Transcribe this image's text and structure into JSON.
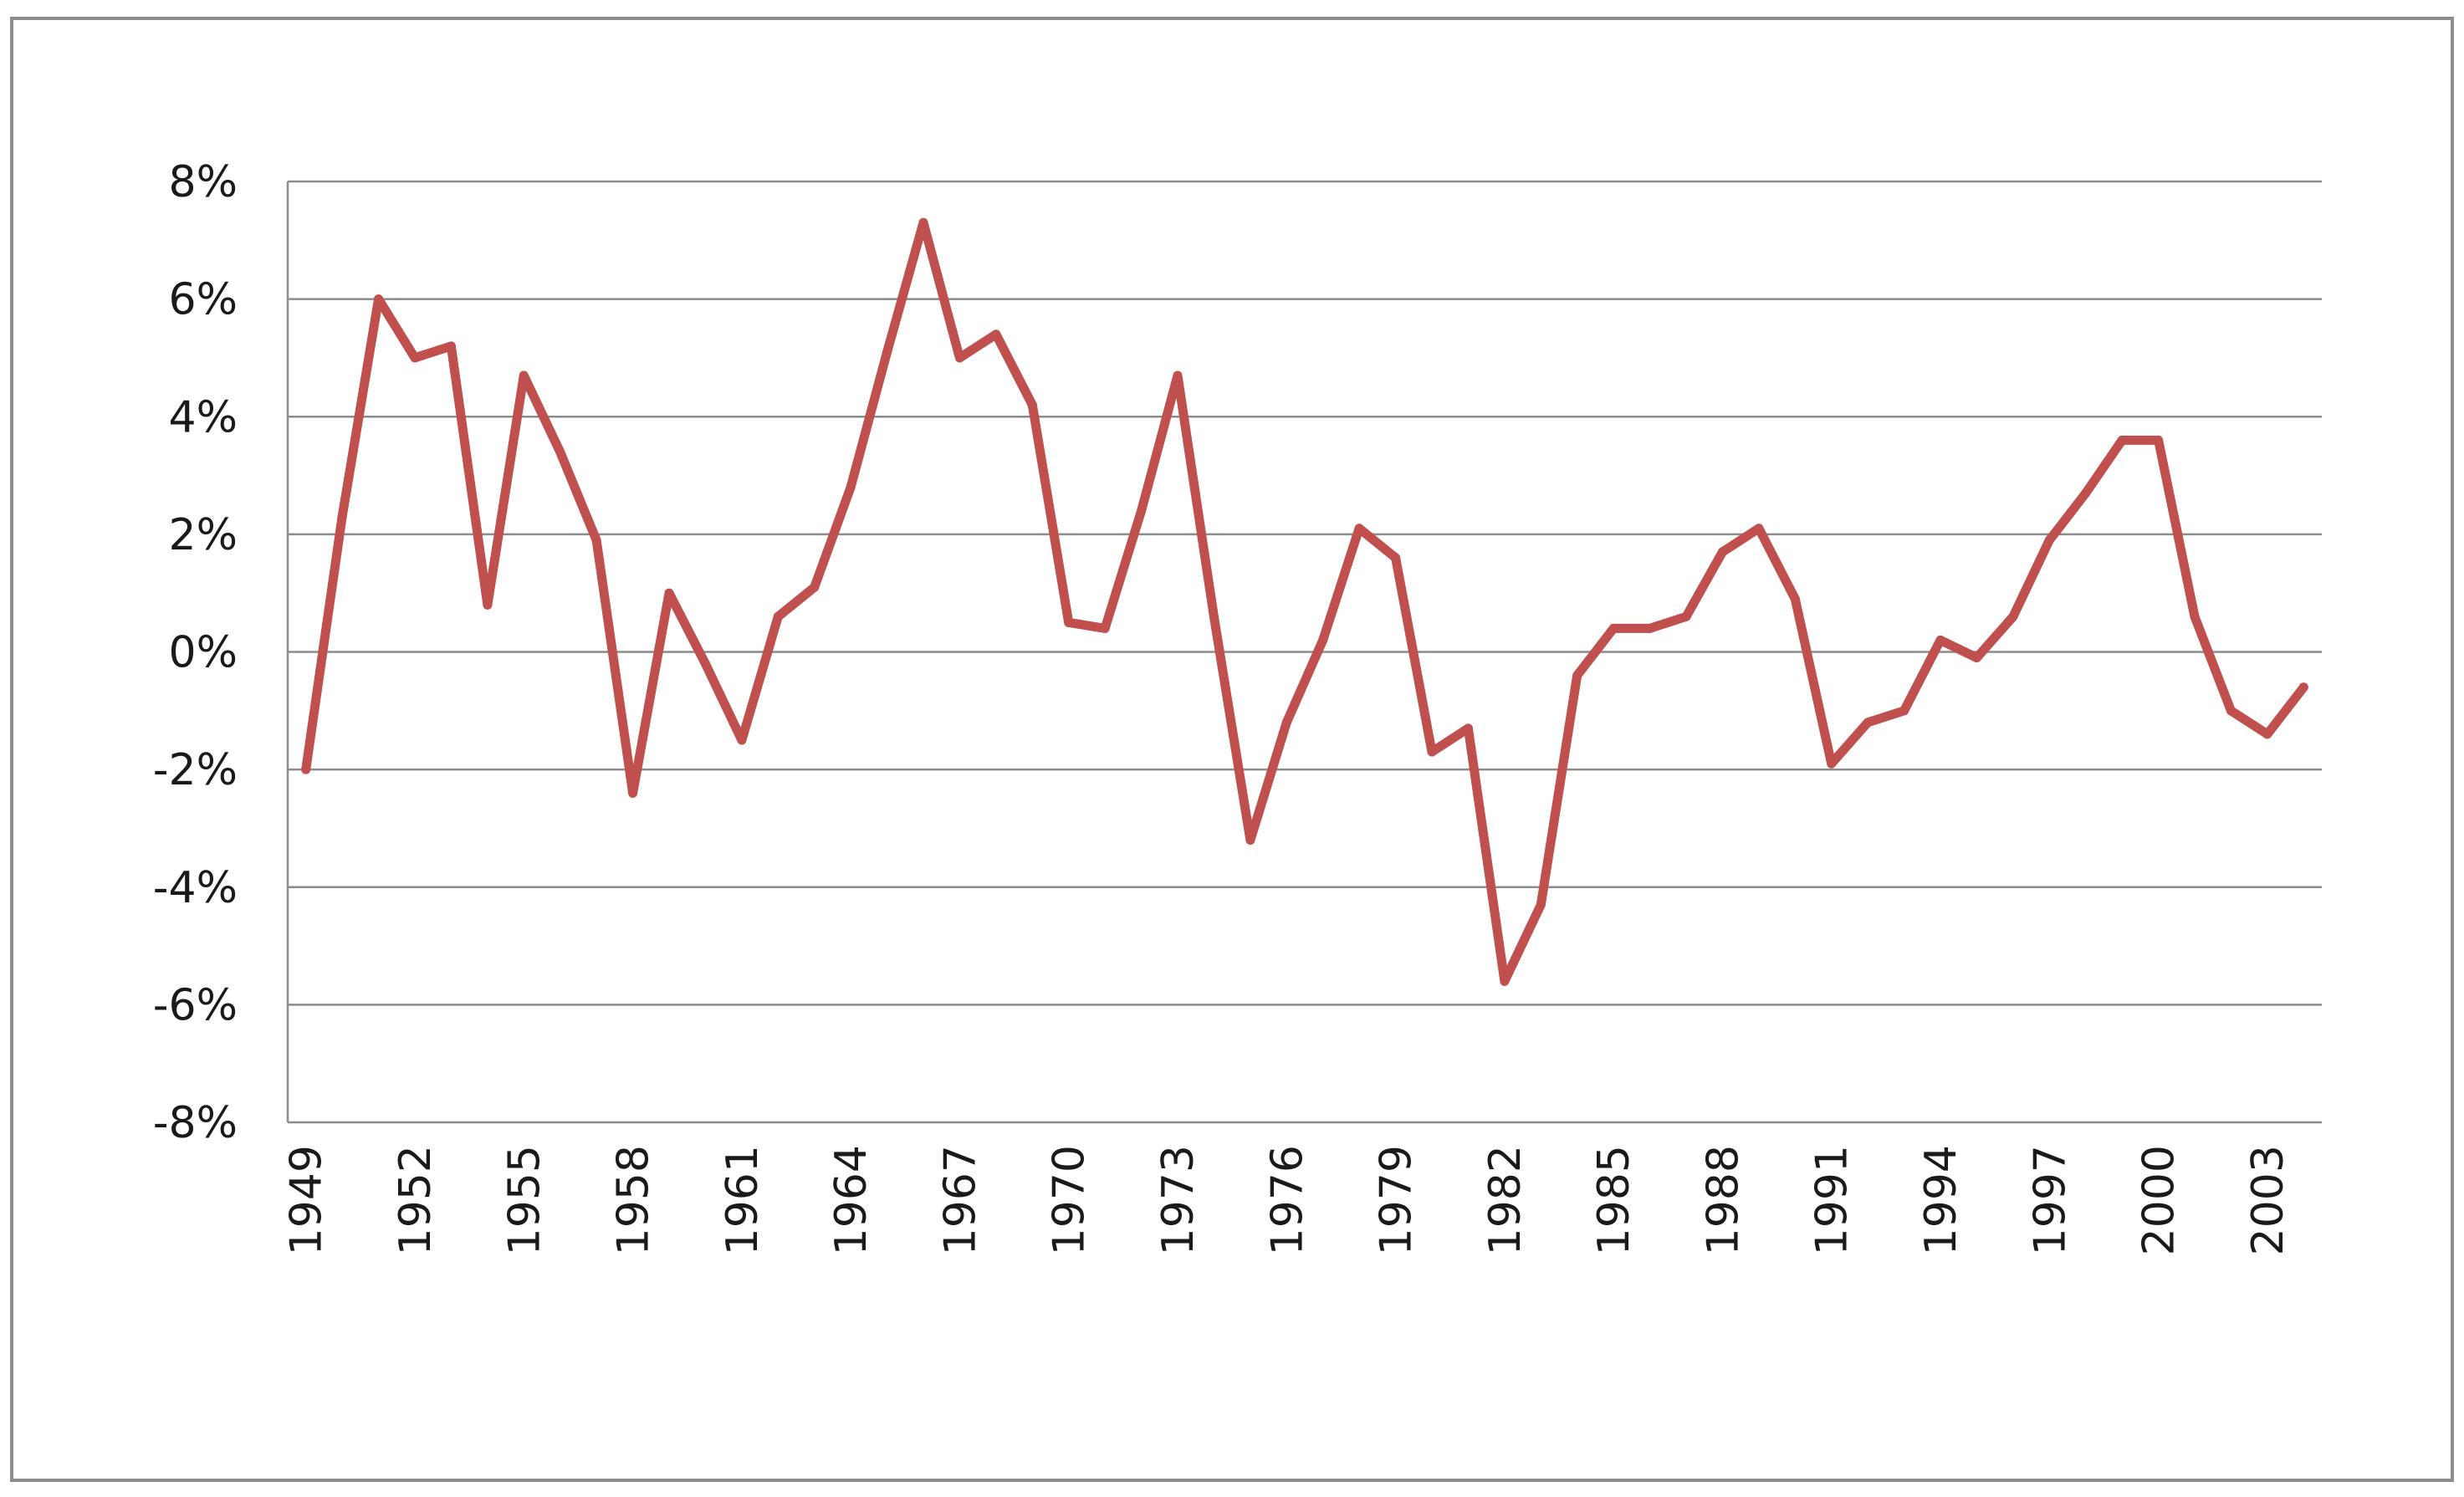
{
  "colors": {
    "line": "#c0504d",
    "grid": "#8c8c8c",
    "axis": "#8c8c8c",
    "frame": "#8c8c8c"
  },
  "chart_data": {
    "type": "line",
    "title": "",
    "xlabel": "",
    "ylabel": "",
    "ylim": [
      -8,
      8
    ],
    "y_ticks": [
      8,
      6,
      4,
      2,
      0,
      -2,
      -4,
      -6,
      -8
    ],
    "y_tick_labels": [
      "8%",
      "6%",
      "4%",
      "2%",
      "0%",
      "-2%",
      "-4%",
      "-6%",
      "-8%"
    ],
    "x_tick_labels": [
      "1949",
      "1952",
      "1955",
      "1958",
      "1961",
      "1964",
      "1967",
      "1970",
      "1973",
      "1976",
      "1979",
      "1982",
      "1985",
      "1988",
      "1991",
      "1994",
      "1997",
      "2000",
      "2003"
    ],
    "grid": true,
    "legend": "none",
    "series": [
      {
        "x": [
          1949,
          1950,
          1951,
          1952,
          1953,
          1954,
          1955,
          1956,
          1957,
          1958,
          1959,
          1960,
          1961,
          1962,
          1963,
          1964,
          1965,
          1966,
          1967,
          1968,
          1969,
          1970,
          1971,
          1972,
          1973,
          1974,
          1975,
          1976,
          1977,
          1978,
          1979,
          1980,
          1981,
          1982,
          1983,
          1984,
          1985,
          1986,
          1987,
          1988,
          1989,
          1990,
          1991,
          1992,
          1993,
          1994,
          1995,
          1996,
          1997,
          1998,
          1999,
          2000,
          2001,
          2002,
          2003,
          2004
        ],
        "values": [
          -2.0,
          2.3,
          6.0,
          5.0,
          5.2,
          0.8,
          4.7,
          3.4,
          1.9,
          -2.4,
          1.0,
          -0.2,
          -1.5,
          0.6,
          1.1,
          2.8,
          5.1,
          7.3,
          5.0,
          5.4,
          4.2,
          0.5,
          0.4,
          2.4,
          4.7,
          0.6,
          -3.2,
          -1.2,
          0.2,
          2.1,
          1.6,
          -1.7,
          -1.3,
          -5.6,
          -4.3,
          -0.4,
          0.4,
          0.4,
          0.6,
          1.7,
          2.1,
          0.9,
          -1.9,
          -1.2,
          -1.0,
          0.2,
          -0.1,
          0.6,
          1.9,
          2.7,
          3.6,
          3.6,
          0.6,
          -1.0,
          -1.4,
          -0.6
        ]
      }
    ]
  }
}
